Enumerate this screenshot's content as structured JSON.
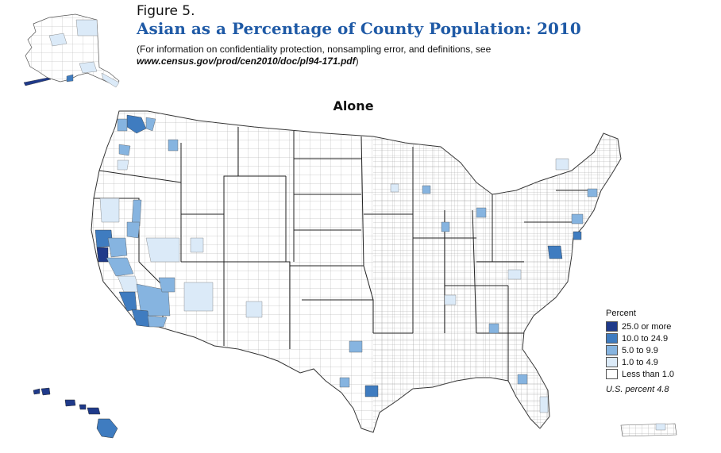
{
  "header": {
    "figure_label": "Figure 5.",
    "title": "Asian as a Percentage of County Population: 2010",
    "note_line1": "(For information on confidentiality protection, nonsampling error, and definitions, see",
    "note_url": "www.census.gov/prod/cen2010/doc/pl94-171.pdf",
    "note_close": ")"
  },
  "map": {
    "subtitle": "Alone",
    "regions_shown": [
      "Contiguous U.S.",
      "Alaska",
      "Hawaii",
      "Puerto Rico"
    ]
  },
  "legend": {
    "title": "Percent",
    "classes": [
      {
        "label": "25.0 or more",
        "color": "#1f3a8a"
      },
      {
        "label": "10.0 to 24.9",
        "color": "#3f7cc0"
      },
      {
        "label": "5.0 to 9.9",
        "color": "#86b4e0"
      },
      {
        "label": "1.0 to 4.9",
        "color": "#dbeaf8"
      },
      {
        "label": "Less than 1.0",
        "color": "#ffffff"
      }
    ]
  },
  "us_percent": "U.S. percent 4.8"
}
